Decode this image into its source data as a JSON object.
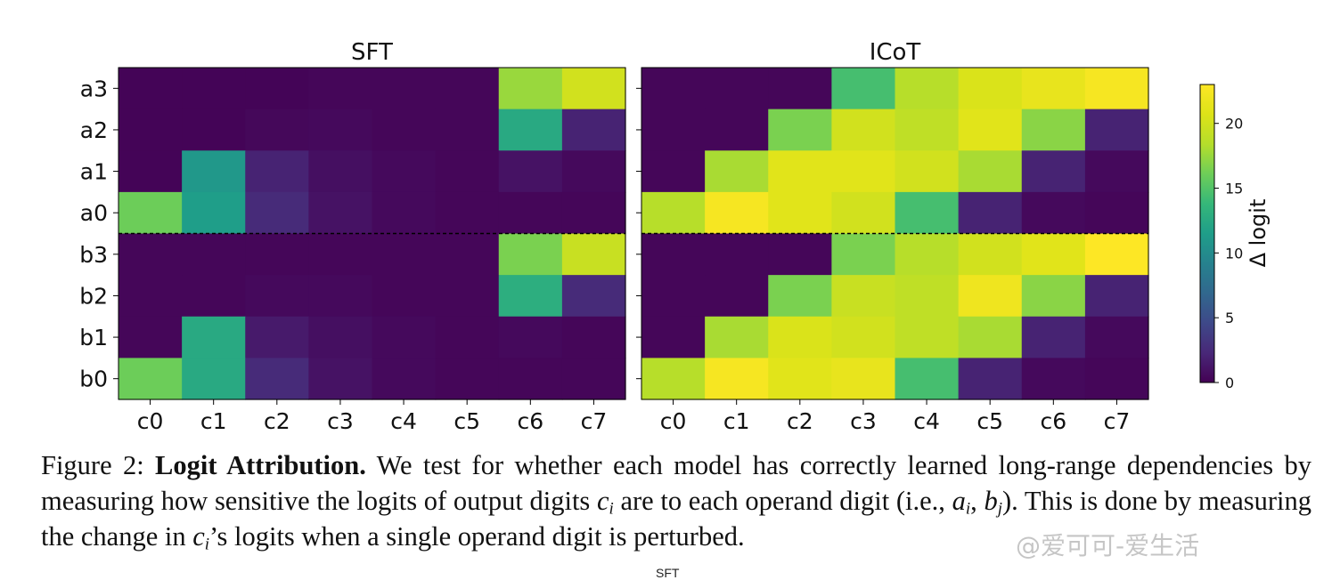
{
  "chart_data": {
    "type": "heatmap",
    "panels": [
      {
        "title": "SFT",
        "row_labels": [
          "a3",
          "a2",
          "a1",
          "a0",
          "b3",
          "b2",
          "b1",
          "b0"
        ],
        "col_labels": [
          "c0",
          "c1",
          "c2",
          "c3",
          "c4",
          "c5",
          "c6",
          "c7"
        ],
        "values": [
          [
            0.2,
            0.2,
            0.2,
            0.3,
            0.3,
            0.3,
            17.5,
            20.0
          ],
          [
            0.2,
            0.2,
            0.4,
            0.5,
            0.3,
            0.3,
            12.5,
            2.0
          ],
          [
            0.2,
            11.0,
            2.0,
            0.8,
            0.5,
            0.3,
            1.0,
            0.5
          ],
          [
            16.0,
            11.5,
            2.5,
            1.0,
            0.5,
            0.3,
            0.3,
            0.3
          ],
          [
            0.3,
            0.3,
            0.3,
            0.3,
            0.3,
            0.3,
            16.5,
            19.5
          ],
          [
            0.3,
            0.3,
            0.5,
            0.5,
            0.3,
            0.3,
            13.0,
            2.5
          ],
          [
            0.3,
            12.5,
            1.5,
            0.8,
            0.5,
            0.3,
            0.5,
            0.3
          ],
          [
            16.0,
            12.5,
            2.5,
            1.0,
            0.5,
            0.3,
            0.3,
            0.3
          ]
        ]
      },
      {
        "title": "ICoT",
        "row_labels": [
          "a3",
          "a2",
          "a1",
          "a0",
          "b3",
          "b2",
          "b1",
          "b0"
        ],
        "col_labels": [
          "c0",
          "c1",
          "c2",
          "c3",
          "c4",
          "c5",
          "c6",
          "c7"
        ],
        "values": [
          [
            0.3,
            0.3,
            0.3,
            14.5,
            18.5,
            20.5,
            21.5,
            22.5
          ],
          [
            0.3,
            0.3,
            16.5,
            20.0,
            19.0,
            21.0,
            17.0,
            2.0
          ],
          [
            0.3,
            18.0,
            21.0,
            21.0,
            20.0,
            18.0,
            2.0,
            0.5
          ],
          [
            18.5,
            22.5,
            21.0,
            20.0,
            14.5,
            2.0,
            0.5,
            0.3
          ],
          [
            0.3,
            0.3,
            0.3,
            16.5,
            18.5,
            20.0,
            21.0,
            23.0
          ],
          [
            0.3,
            0.3,
            16.5,
            19.5,
            19.0,
            22.0,
            17.0,
            2.0
          ],
          [
            0.3,
            18.0,
            20.5,
            20.0,
            19.0,
            18.0,
            2.0,
            0.5
          ],
          [
            18.5,
            22.5,
            21.0,
            21.5,
            14.5,
            2.0,
            0.5,
            0.3
          ]
        ]
      }
    ],
    "colorbar": {
      "label": "Δ logit",
      "ticks": [
        0,
        5,
        10,
        15,
        20
      ],
      "range": [
        0,
        23
      ],
      "colormap": "viridis"
    },
    "divider_between_rows": [
      "a0",
      "b3"
    ]
  },
  "caption": {
    "prefix": "Figure 2:",
    "bold": "Logit Attribution.",
    "text1": "We test for whether each model has correctly learned long-range dependencies by measuring how sensitive the logits of output digits",
    "ci_base": "c",
    "ci_sub": "i",
    "text2": "are to each operand digit (i.e.,",
    "ai_base": "a",
    "ai_sub": "i",
    "comma": ",",
    "bj_base": "b",
    "bj_sub": "j",
    "text3": "). This is done by measuring the change in",
    "text4": "’s logits when a single operand digit is perturbed."
  },
  "watermark": "@爱可可-爱生活",
  "cutoff_label": "SFT"
}
